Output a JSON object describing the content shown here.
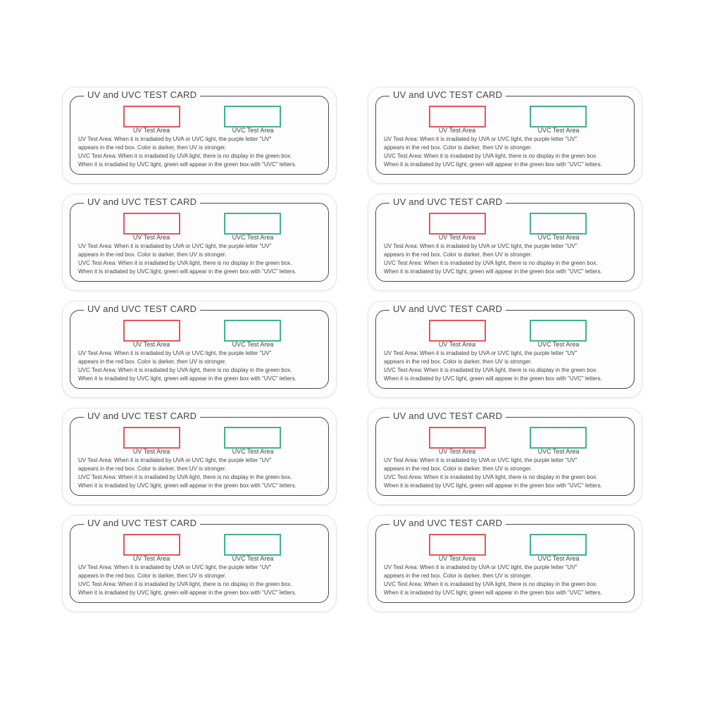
{
  "card": {
    "title": "UV and UVC TEST CARD",
    "uv_label": "UV Test Area",
    "uvc_label": "UVC Test Area",
    "lines": [
      "UV Test Area: When it is irradiated by UVA or UVC light, the purple letter \"UV\"",
      "appears in the red box. Color is darker, then UV is stronger.",
      "UVC Test Area: When it is irradiated by UVA light, there is no display in the green box.",
      "When it is irradiated by UVC light, green will appear in the green box with \"UVC\" letters."
    ],
    "colors": {
      "uv_box": "#e4575b",
      "uvc_box": "#3fb38a",
      "border": "#4a4a4a"
    }
  },
  "grid": {
    "rows": 5,
    "columns": 2
  }
}
